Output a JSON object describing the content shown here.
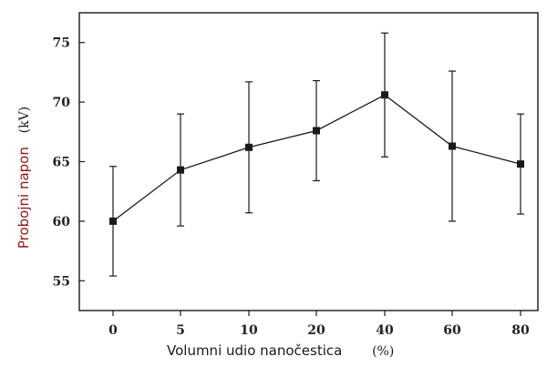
{
  "chart_data": {
    "type": "line",
    "title": "",
    "xlabel": "Volumni udio nanočestica",
    "xlabel_unit": "(%)",
    "ylabel": "Probojni napon",
    "ylabel_unit": "(kV)",
    "categories": [
      "0",
      "5",
      "10",
      "20",
      "40",
      "60",
      "80"
    ],
    "series": [
      {
        "values": [
          60.0,
          64.3,
          66.2,
          67.6,
          70.6,
          66.3,
          64.8
        ],
        "error_low": [
          55.4,
          59.6,
          60.7,
          63.4,
          65.4,
          60.0,
          60.6
        ],
        "error_high": [
          64.6,
          69.0,
          71.7,
          71.8,
          75.8,
          72.6,
          69.0
        ]
      }
    ],
    "yticks": [
      55,
      60,
      65,
      70,
      75
    ],
    "ylim": [
      52.5,
      77.5
    ],
    "grid": false,
    "legend": "none",
    "marker": "square",
    "colors": {
      "line": "#1a1a1a",
      "axis": "#1a1a1a",
      "ylabel": "#8b1a1a",
      "xlabel": "#1a1a1a"
    }
  }
}
